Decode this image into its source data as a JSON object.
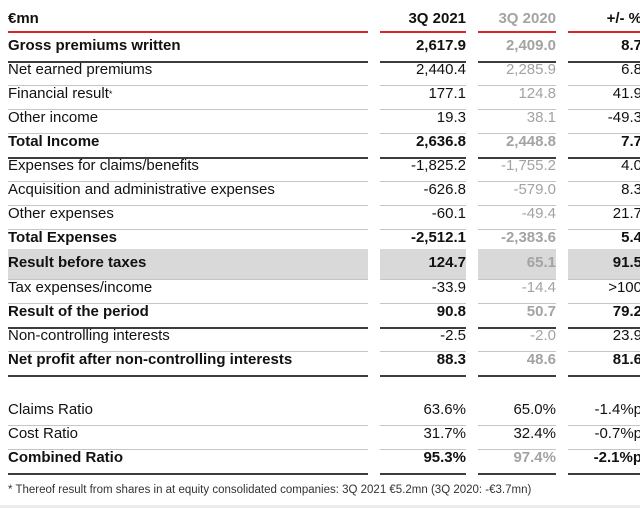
{
  "colors": {
    "accent_red": "#d9262e",
    "gray_text": "#a3a3a3",
    "dark_line": "#3d3d3d",
    "light_line": "#c5c5c5",
    "highlight_bg": "#d9d9d9"
  },
  "table": {
    "header": {
      "label": "€mn",
      "col2021": "3Q 2021",
      "col2020": "3Q 2020",
      "colchange": "+/- %"
    },
    "main_rows": [
      {
        "label": "Gross premiums written",
        "v2021": "2,617.9",
        "v2020": "2,409.0",
        "change": "8.7",
        "bold": true,
        "line": "dark"
      },
      {
        "label": "Net earned premiums",
        "v2021": "2,440.4",
        "v2020": "2,285.9",
        "change": "6.8",
        "line": "light"
      },
      {
        "label": "Financial result",
        "sup": "*",
        "v2021": "177.1",
        "v2020": "124.8",
        "change": "41.9",
        "line": "light"
      },
      {
        "label": "Other income",
        "v2021": "19.3",
        "v2020": "38.1",
        "change": "-49.3",
        "line": "light"
      },
      {
        "label": "Total Income",
        "v2021": "2,636.8",
        "v2020": "2,448.8",
        "change": "7.7",
        "bold": true,
        "line": "dark"
      },
      {
        "label": "Expenses for claims/benefits",
        "v2021": "-1,825.2",
        "v2020": "-1,755.2",
        "change": "4.0",
        "line": "light"
      },
      {
        "label": "Acquisition and administrative expenses",
        "v2021": "-626.8",
        "v2020": "-579.0",
        "change": "8.3",
        "line": "light"
      },
      {
        "label": "Other expenses",
        "v2021": "-60.1",
        "v2020": "-49.4",
        "change": "21.7",
        "line": "light"
      },
      {
        "label": "Total Expenses",
        "v2021": "-2,512.1",
        "v2020": "-2,383.6",
        "change": "5.4",
        "bold": true,
        "line": "dark"
      },
      {
        "label": "Result before taxes",
        "v2021": "124.7",
        "v2020": "65.1",
        "change": "91.5",
        "bold": true,
        "line": "light",
        "highlight": true
      },
      {
        "label": "Tax expenses/income",
        "v2021": "-33.9",
        "v2020": "-14.4",
        "change": ">100",
        "line": "light"
      },
      {
        "label": "Result of the period",
        "v2021": "90.8",
        "v2020": "50.7",
        "change": "79.2",
        "bold": true,
        "line": "dark"
      },
      {
        "label": "Non-controlling interests",
        "v2021": "-2.5",
        "v2020": "-2.0",
        "change": "23.9",
        "line": "light"
      },
      {
        "label": "Net profit after non-controlling interests",
        "v2021": "88.3",
        "v2020": "48.6",
        "change": "81.6",
        "bold": true,
        "line": "dark"
      }
    ],
    "ratio_rows": [
      {
        "label": "Claims Ratio",
        "v2021": "63.6%",
        "v2020": "65.0%",
        "change": "-1.4%p",
        "line": "light",
        "v2020_dark": true
      },
      {
        "label": "Cost Ratio",
        "v2021": "31.7%",
        "v2020": "32.4%",
        "change": "-0.7%p",
        "line": "light",
        "v2020_dark": true
      },
      {
        "label": "Combined Ratio",
        "v2021": "95.3%",
        "v2020": "97.4%",
        "change": "-2.1%p",
        "bold": true,
        "line": "dark"
      }
    ],
    "footnote": "* Thereof result from shares in at equity consolidated companies: 3Q 2021 €5.2mn (3Q 2020: -€3.7mn)"
  }
}
